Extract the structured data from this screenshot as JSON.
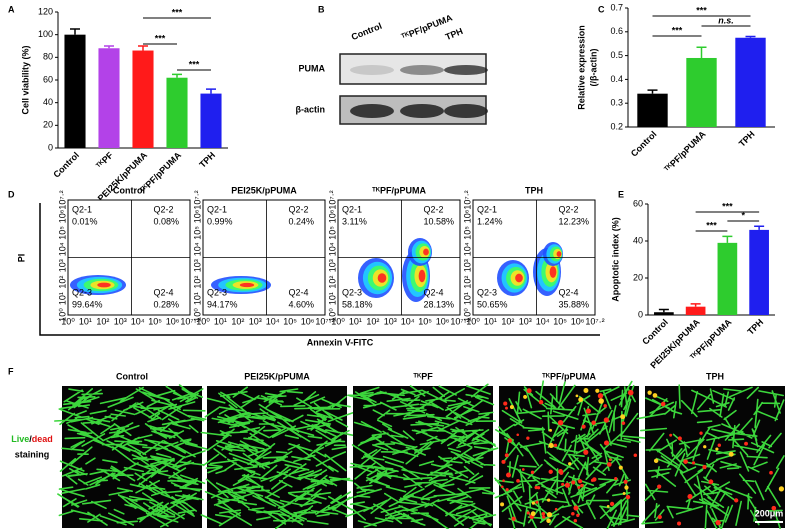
{
  "panel_letters": [
    "A",
    "B",
    "C",
    "D",
    "E",
    "F"
  ],
  "chart_data": [
    {
      "type": "bar",
      "ylabel": "Cell viability (%)",
      "categories": [
        "Control",
        "ᵀᴷPF",
        "PEI25K/pPUMA",
        "ᵀᴷPF/pPUMA",
        "TPH"
      ],
      "values": [
        100,
        88,
        86,
        62,
        48
      ],
      "errors": [
        5,
        2,
        4,
        3,
        4
      ],
      "colors": [
        "#000000",
        "#b342e8",
        "#ff1a1a",
        "#2ecc2e",
        "#1f1fef"
      ],
      "ylim": [
        0,
        120
      ],
      "yticks": [
        0,
        20,
        40,
        60,
        80,
        100,
        120
      ],
      "annotations": [
        "***",
        "***",
        "***"
      ]
    },
    {
      "type": "bar",
      "ylabel": "Relative expression",
      "ylabel2": "(/β-actin)",
      "categories": [
        "Control",
        "ᵀᴷPF/pPUMA",
        "TPH"
      ],
      "values": [
        0.34,
        0.49,
        0.575
      ],
      "errors": [
        0.015,
        0.045,
        0.005
      ],
      "colors": [
        "#000000",
        "#2ecc2e",
        "#1f1fef"
      ],
      "ylim": [
        0.2,
        0.7
      ],
      "yticks": [
        0.2,
        0.3,
        0.4,
        0.5,
        0.6,
        0.7
      ],
      "annotations": [
        "***",
        "n.s.",
        "***"
      ]
    },
    {
      "type": "bar",
      "ylabel": "Apoptotic index (%)",
      "categories": [
        "Control",
        "PEI25K/pPUMA",
        "ᵀᴷPF/pPUMA",
        "TPH"
      ],
      "values": [
        1.5,
        4.5,
        39,
        46
      ],
      "errors": [
        1.5,
        1.5,
        3.5,
        2
      ],
      "colors": [
        "#000000",
        "#ff1a1a",
        "#2ecc2e",
        "#1f1fef"
      ],
      "ylim": [
        0,
        60
      ],
      "yticks": [
        0,
        20,
        40,
        60
      ],
      "annotations": [
        "***",
        "*",
        "***"
      ]
    }
  ],
  "western_blot": {
    "lanes": [
      "Control",
      "ᵀᴷPF/pPUMA",
      "TPH"
    ],
    "rows": [
      "PUMA",
      "β-actin"
    ]
  },
  "flow_cytometry": {
    "xlabel": "Annexin V-FITC",
    "ylabel": "PI",
    "ticks": [
      "10⁰",
      "10¹",
      "10²",
      "10³",
      "10⁴",
      "10⁵",
      "10⁶",
      "10⁷·²"
    ],
    "plots": [
      {
        "title": "Control",
        "quadrants": [
          {
            "label": "Q2-1",
            "percent": "0.01%"
          },
          {
            "label": "Q2-2",
            "percent": "0.08%"
          },
          {
            "label": "Q2-3",
            "percent": "99.64%"
          },
          {
            "label": "Q2-4",
            "percent": "0.28%"
          }
        ]
      },
      {
        "title": "PEI25K/pPUMA",
        "quadrants": [
          {
            "label": "Q2-1",
            "percent": "0.99%"
          },
          {
            "label": "Q2-2",
            "percent": "0.24%"
          },
          {
            "label": "Q2-3",
            "percent": "94.17%"
          },
          {
            "label": "Q2-4",
            "percent": "4.60%"
          }
        ]
      },
      {
        "title": "ᵀᴷPF/pPUMA",
        "quadrants": [
          {
            "label": "Q2-1",
            "percent": "3.11%"
          },
          {
            "label": "Q2-2",
            "percent": "10.58%"
          },
          {
            "label": "Q2-3",
            "percent": "58.18%"
          },
          {
            "label": "Q2-4",
            "percent": "28.13%"
          }
        ]
      },
      {
        "title": "TPH",
        "quadrants": [
          {
            "label": "Q2-1",
            "percent": "1.24%"
          },
          {
            "label": "Q2-2",
            "percent": "12.23%"
          },
          {
            "label": "Q2-3",
            "percent": "50.65%"
          },
          {
            "label": "Q2-4",
            "percent": "35.88%"
          }
        ]
      }
    ]
  },
  "live_dead": {
    "panels": [
      "Control",
      "PEI25K/pPUMA",
      "ᵀᴷPF",
      "ᵀᴷPF/pPUMA",
      "TPH"
    ],
    "label_live": "Live",
    "label_sep": "/",
    "label_dead": "dead",
    "label_staining": "staining",
    "scale_bar": "200μm"
  }
}
